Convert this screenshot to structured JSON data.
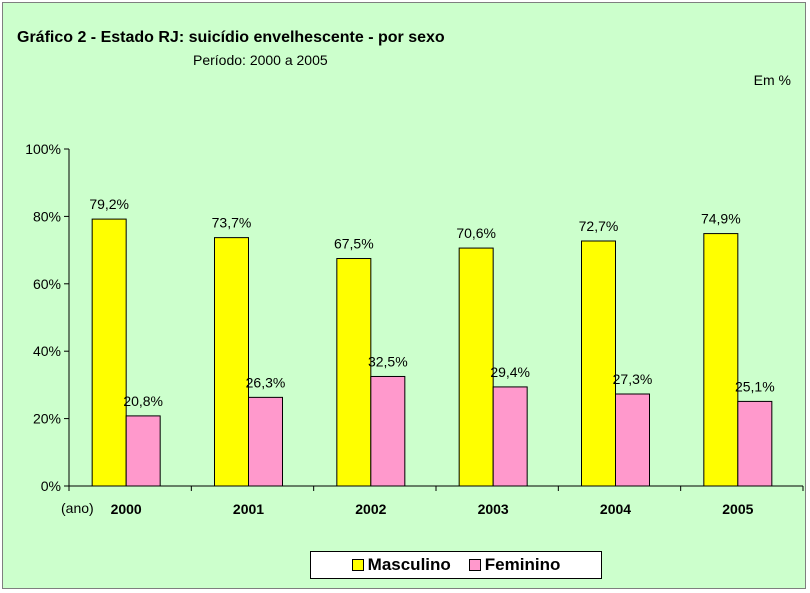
{
  "chart_data": {
    "type": "bar",
    "title": "Gráfico 2 - Estado RJ: suicídio envelhescente - por sexo",
    "subtitle": "Período: 2000 a 2005",
    "unit": "Em %",
    "xlabel": "(ano)",
    "categories": [
      "2000",
      "2001",
      "2002",
      "2003",
      "2004",
      "2005"
    ],
    "series": [
      {
        "name": "Masculino",
        "color": "#ffff00",
        "values": [
          79.2,
          73.7,
          67.5,
          70.6,
          72.7,
          74.9
        ],
        "labels": [
          "79,2%",
          "73,7%",
          "67,5%",
          "70,6%",
          "72,7%",
          "74,9%"
        ]
      },
      {
        "name": "Feminino",
        "color": "#ff99cc",
        "values": [
          20.8,
          26.3,
          32.5,
          29.4,
          27.3,
          25.1
        ],
        "labels": [
          "20,8%",
          "26,3%",
          "32,5%",
          "29,4%",
          "27,3%",
          "25,1%"
        ]
      }
    ],
    "ylim": [
      0,
      100
    ],
    "yticks": [
      0,
      20,
      40,
      60,
      80,
      100
    ],
    "ytick_labels": [
      "0%",
      "20%",
      "40%",
      "60%",
      "80%",
      "100%"
    ],
    "grid": false,
    "legend_position": "bottom-center"
  }
}
